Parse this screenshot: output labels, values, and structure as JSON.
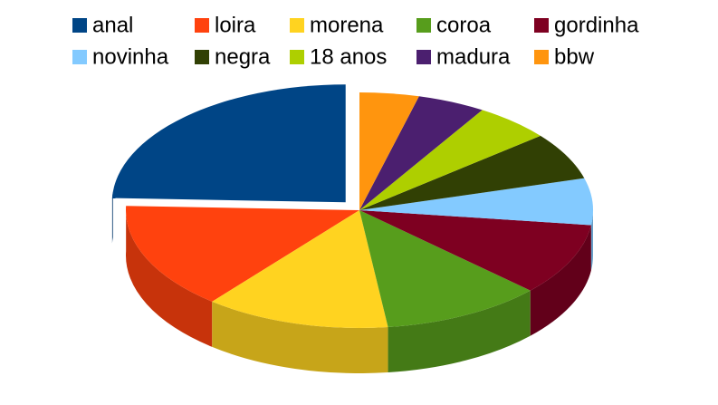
{
  "chart_data": {
    "type": "pie3d",
    "categories": [
      "anal",
      "loira",
      "morena",
      "coroa",
      "gordinha",
      "novinha",
      "negra",
      "18 anos",
      "madura",
      "bbw"
    ],
    "values": [
      24.4,
      14.7,
      12.8,
      11.1,
      9.9,
      6.4,
      6.5,
      5.3,
      4.7,
      4.1
    ],
    "colors": [
      "#004586",
      "#ff420e",
      "#ffd320",
      "#579d1c",
      "#7e0021",
      "#83caff",
      "#314004",
      "#aecf00",
      "#4b1f6f",
      "#ff950e"
    ],
    "legend": "top"
  }
}
